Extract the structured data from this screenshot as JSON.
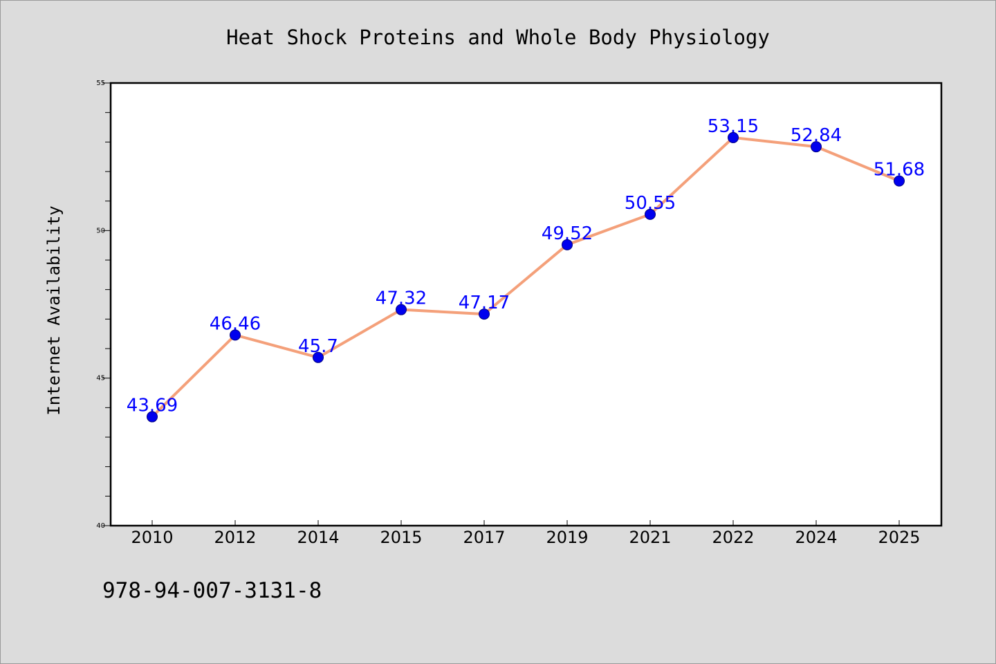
{
  "chart_data": {
    "type": "line",
    "title": "Heat Shock Proteins and Whole Body Physiology",
    "xlabel": "",
    "ylabel": "Internet Availability",
    "categories": [
      "2010",
      "2012",
      "2014",
      "2015",
      "2017",
      "2019",
      "2021",
      "2022",
      "2024",
      "2025"
    ],
    "series": [
      {
        "values": [
          43.69,
          46.46,
          45.7,
          47.32,
          47.17,
          49.52,
          50.55,
          53.15,
          52.84,
          51.68
        ],
        "labels": [
          "43.69",
          "46.46",
          "45.7",
          "47.32",
          "47.17",
          "49.52",
          "50.55",
          "53.15",
          "52.84",
          "51.68"
        ]
      }
    ],
    "ylim": [
      40,
      55
    ],
    "yticks": [
      "40",
      "45",
      "50",
      "55"
    ],
    "grid": false,
    "legend": "none",
    "colors": {
      "line": "#f4a07a",
      "marker": "#0000ee",
      "marker_edge": "#000080",
      "data_label": "#0000ff",
      "plot_background": "#ffffff",
      "page_background": "#dcdcdc"
    }
  },
  "footer": {
    "code": "978-94-007-3131-8"
  }
}
